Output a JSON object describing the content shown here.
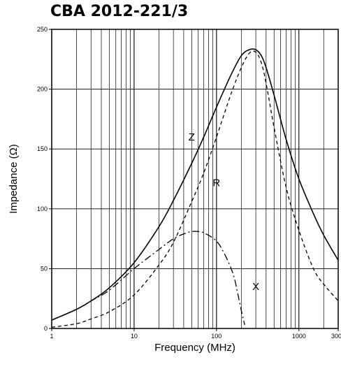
{
  "chart_data": {
    "type": "line",
    "title": "CBA 2012-221/3",
    "xlabel": "Frequency (MHz)",
    "ylabel": "Impedance (Ω)",
    "xscale": "log",
    "xlim": [
      1,
      3000
    ],
    "ylim": [
      0,
      250
    ],
    "x_tick_labels": [
      "1",
      "10",
      "100",
      "1000",
      "3000"
    ],
    "y_tick_labels": [
      "0",
      "50",
      "100",
      "150",
      "200",
      "250"
    ],
    "grid": true,
    "series": [
      {
        "name": "Z",
        "style": "solid",
        "x": [
          1,
          2,
          3,
          5,
          10,
          20,
          30,
          50,
          70,
          100,
          150,
          200,
          250,
          300,
          350,
          400,
          500,
          700,
          1000,
          1500,
          2000,
          3000
        ],
        "y": [
          7,
          16,
          23,
          34,
          55,
          85,
          107,
          138,
          160,
          185,
          212,
          228,
          233,
          233,
          228,
          218,
          195,
          158,
          125,
          96,
          78,
          57
        ]
      },
      {
        "name": "R",
        "style": "dashed",
        "x": [
          1,
          2,
          3,
          5,
          10,
          20,
          30,
          50,
          70,
          100,
          150,
          200,
          250,
          300,
          350,
          400,
          500,
          700,
          1000,
          1500,
          2000,
          3000
        ],
        "y": [
          1,
          4,
          8,
          14,
          28,
          53,
          72,
          106,
          130,
          160,
          196,
          218,
          230,
          231,
          222,
          205,
          168,
          118,
          82,
          50,
          37,
          23
        ]
      },
      {
        "name": "X",
        "style": "dash-dot",
        "x": [
          1,
          2,
          3,
          5,
          10,
          20,
          30,
          40,
          50,
          60,
          70,
          100,
          130,
          160,
          180,
          200,
          220
        ],
        "y": [
          7,
          16,
          23,
          32,
          50,
          66,
          75,
          79,
          81,
          81,
          80,
          73,
          60,
          45,
          30,
          15,
          3
        ]
      }
    ],
    "annotations": [
      {
        "text": "Z",
        "x": 50,
        "y": 157
      },
      {
        "text": "R",
        "x": 100,
        "y": 119
      },
      {
        "text": "X",
        "x": 300,
        "y": 32
      }
    ]
  }
}
